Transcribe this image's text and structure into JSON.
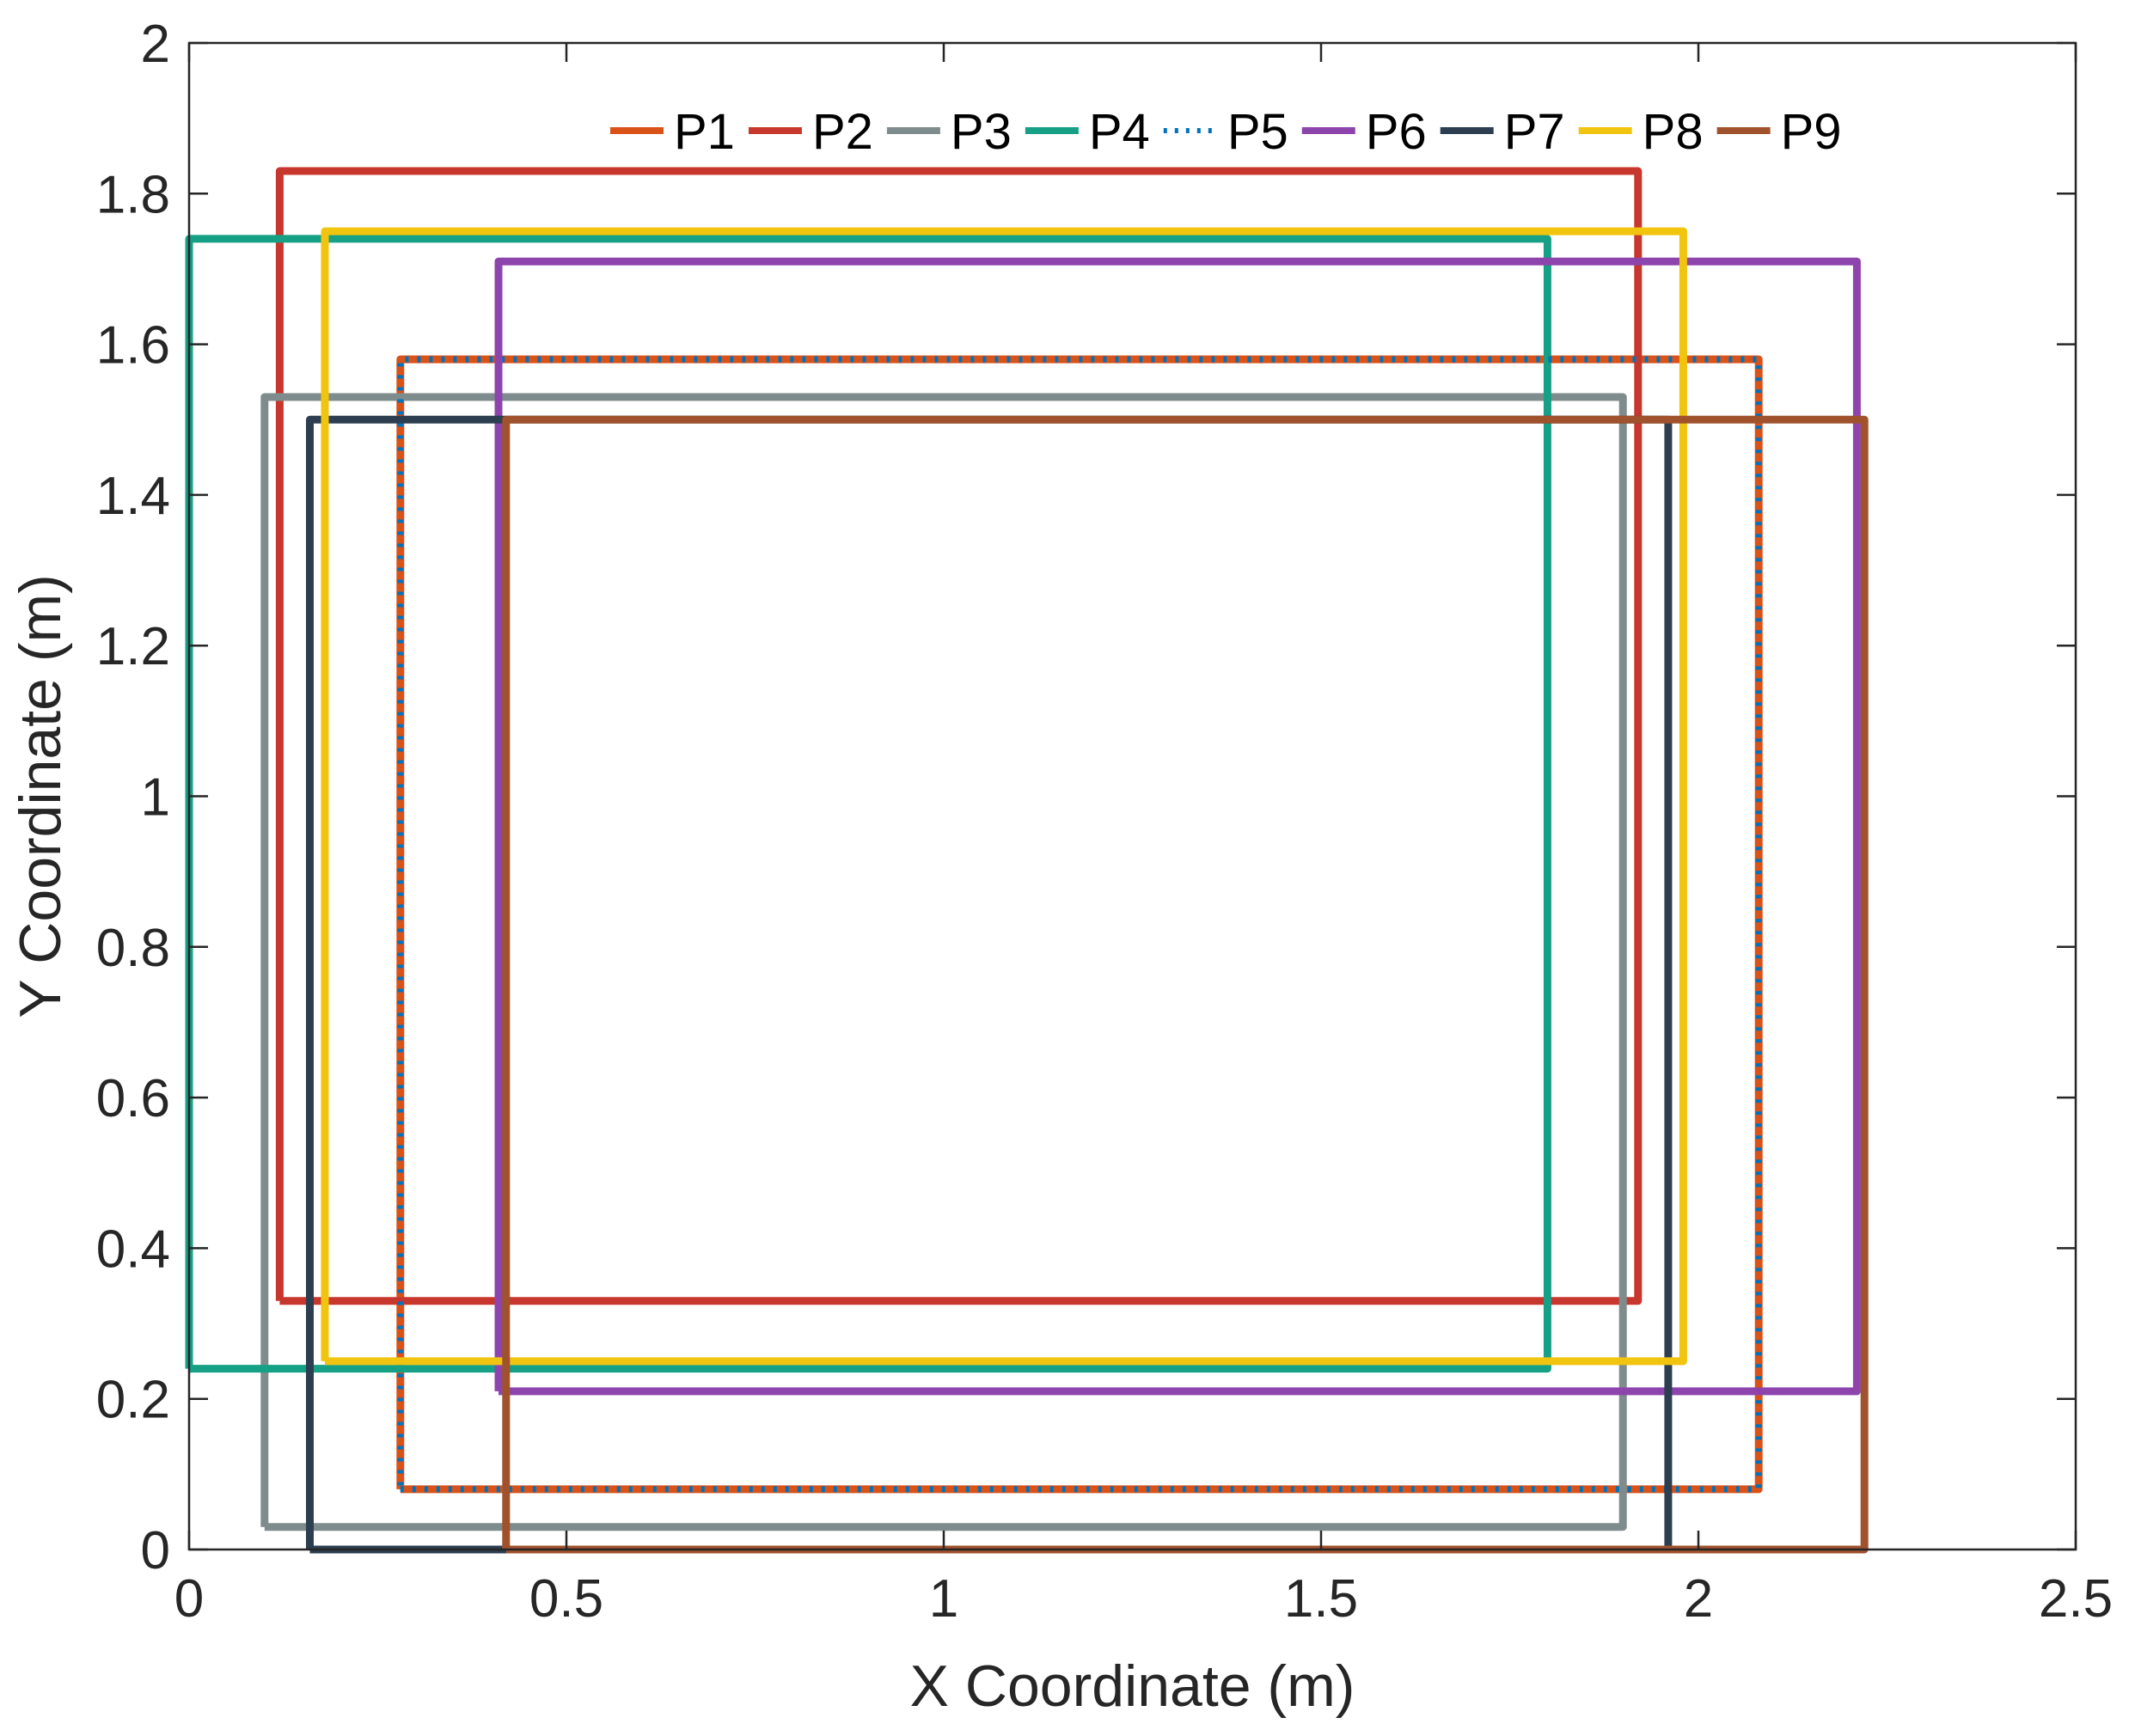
{
  "chart_data": {
    "type": "line",
    "title": "",
    "xlabel": "X Coordinate (m)",
    "ylabel": "Y Coordinate (m)",
    "xlim": [
      0,
      2.5
    ],
    "ylim": [
      0,
      2
    ],
    "xticks": [
      0,
      0.5,
      1,
      1.5,
      2,
      2.5
    ],
    "xtick_labels": [
      "0",
      "0.5",
      "1",
      "1.5",
      "2",
      "2.5"
    ],
    "yticks": [
      0,
      0.2,
      0.4,
      0.6,
      0.8,
      1,
      1.2,
      1.4,
      1.6,
      1.8,
      2
    ],
    "ytick_labels": [
      "0",
      "0.2",
      "0.4",
      "0.6",
      "0.8",
      "1",
      "1.2",
      "1.4",
      "1.6",
      "1.8",
      "2"
    ],
    "grid": false,
    "legend_position": "top",
    "series": [
      {
        "name": "P1",
        "color": "#D95319",
        "style": "solid",
        "x": [
          0.28,
          2.08,
          2.08,
          0.28,
          0.28
        ],
        "y": [
          0.08,
          0.08,
          1.58,
          1.58,
          0.08
        ]
      },
      {
        "name": "P2",
        "color": "#C8372D",
        "style": "solid",
        "x": [
          0.12,
          1.92,
          1.92,
          0.12,
          0.12
        ],
        "y": [
          0.33,
          0.33,
          1.83,
          1.83,
          0.33
        ]
      },
      {
        "name": "P3",
        "color": "#7F8C8D",
        "style": "solid",
        "x": [
          0.1,
          1.9,
          1.9,
          0.1,
          0.1
        ],
        "y": [
          0.03,
          0.03,
          1.53,
          1.53,
          0.03
        ]
      },
      {
        "name": "P4",
        "color": "#16A085",
        "style": "solid",
        "x": [
          0.0,
          1.8,
          1.8,
          0.0,
          0.0
        ],
        "y": [
          0.24,
          0.24,
          1.74,
          1.74,
          0.24
        ]
      },
      {
        "name": "P5",
        "color": "#0072BD",
        "style": "dotted",
        "x": [
          0.28,
          2.08,
          2.08,
          0.28,
          0.28
        ],
        "y": [
          0.08,
          0.08,
          1.58,
          1.58,
          0.08
        ]
      },
      {
        "name": "P6",
        "color": "#8E44AD",
        "style": "solid",
        "x": [
          0.41,
          2.21,
          2.21,
          0.41,
          0.41
        ],
        "y": [
          0.21,
          0.21,
          1.71,
          1.71,
          0.21
        ]
      },
      {
        "name": "P7",
        "color": "#2C3E50",
        "style": "solid",
        "x": [
          0.16,
          1.96,
          1.96,
          0.16,
          0.16
        ],
        "y": [
          0.0,
          0.0,
          1.5,
          1.5,
          0.0
        ]
      },
      {
        "name": "P8",
        "color": "#F1C40F",
        "style": "solid",
        "x": [
          0.18,
          1.98,
          1.98,
          0.18,
          0.18
        ],
        "y": [
          0.25,
          0.25,
          1.75,
          1.75,
          0.25
        ]
      },
      {
        "name": "P9",
        "color": "#A0522D",
        "style": "solid",
        "x": [
          0.42,
          2.22,
          2.22,
          0.42,
          0.42
        ],
        "y": [
          0.0,
          0.0,
          1.5,
          1.5,
          0.0
        ]
      }
    ]
  }
}
